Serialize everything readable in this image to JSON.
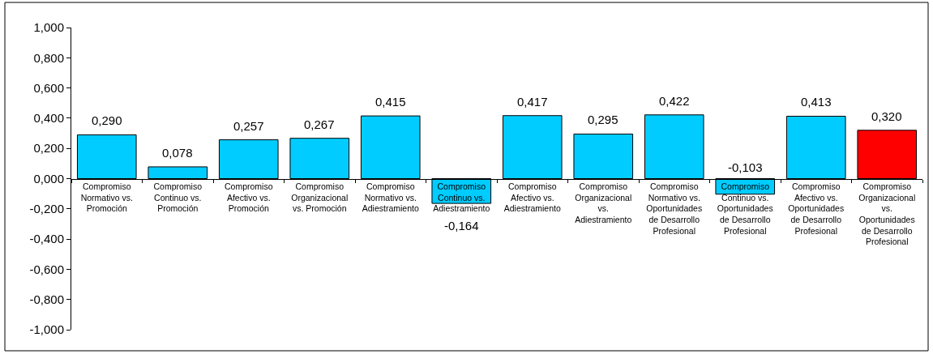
{
  "chart_data": {
    "type": "bar",
    "categories": [
      "Compromiso Normativo vs. Promoción",
      "Compromiso Continuo vs. Promoción",
      "Compromiso Afectivo vs. Promoción",
      "Compromiso Organizacional vs. Promoción",
      "Compromiso Normativo vs. Adiestramiento",
      "Compromiso Continuo vs. Adiestramiento",
      "Compromiso Afectivo vs. Adiestramiento",
      "Compromiso Organizacional vs. Adiestramiento",
      "Compromiso Normativo vs. Oportunidades de Desarrollo Profesional",
      "Compromiso Continuo vs. Oportunidades de Desarrollo Profesional",
      "Compromiso Afectivo vs. Oportunidades de Desarrollo Profesional",
      "Compromiso Organizacional vs. Oportunidades de Desarrollo Profesional"
    ],
    "values": [
      0.29,
      0.078,
      0.257,
      0.267,
      0.415,
      -0.164,
      0.417,
      0.295,
      0.422,
      -0.103,
      0.413,
      0.32
    ],
    "colors": [
      "#00ccff",
      "#00ccff",
      "#00ccff",
      "#00ccff",
      "#00ccff",
      "#00ccff",
      "#00ccff",
      "#00ccff",
      "#00ccff",
      "#00ccff",
      "#00ccff",
      "#ff0000"
    ],
    "value_labels": [
      "0,290",
      "0,078",
      "0,257",
      "0,267",
      "0,415",
      "-0,164",
      "0,417",
      "0,295",
      "0,422",
      "-0,103",
      "0,413",
      "0,320"
    ],
    "ylim": [
      -1,
      1
    ],
    "yticks": [
      {
        "value": -1,
        "label": "-1,000"
      },
      {
        "value": -0.8,
        "label": "-0,800"
      },
      {
        "value": -0.6,
        "label": "-0,600"
      },
      {
        "value": -0.4,
        "label": "-0,400"
      },
      {
        "value": -0.2,
        "label": "-0,200"
      },
      {
        "value": 0,
        "label": "0,000"
      },
      {
        "value": 0.2,
        "label": "0,200"
      },
      {
        "value": 0.4,
        "label": "0,400"
      },
      {
        "value": 0.6,
        "label": "0,600"
      },
      {
        "value": 0.8,
        "label": "0,800"
      },
      {
        "value": 1,
        "label": "1,000"
      }
    ]
  }
}
